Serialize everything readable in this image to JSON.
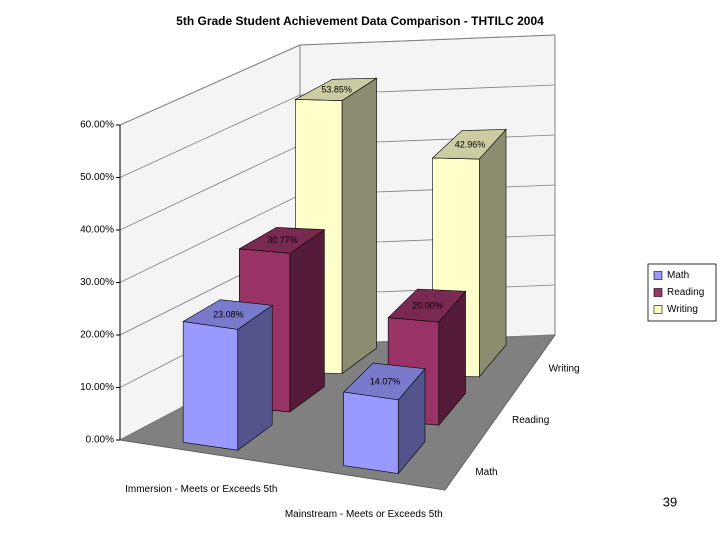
{
  "chart_data": {
    "type": "bar3d",
    "title": "5th Grade Student Achievement Data Comparison - THTILC 2004",
    "categories": [
      "Immersion - Meets or Exceeds 5th",
      "Mainstream - Meets or Exceeds 5th"
    ],
    "series": [
      {
        "name": "Math",
        "color": "#9999ff",
        "values": [
          23.08,
          14.07
        ],
        "value_labels": [
          "23.08%",
          "14.07%"
        ]
      },
      {
        "name": "Reading",
        "color": "#993366",
        "values": [
          30.77,
          20.0
        ],
        "value_labels": [
          "30.77%",
          "20.00%"
        ]
      },
      {
        "name": "Writing",
        "color": "#ffffcc",
        "values": [
          53.85,
          42.96
        ],
        "value_labels": [
          "53.85%",
          "42.96%"
        ]
      }
    ],
    "ylim": [
      0,
      60
    ],
    "yticks": [
      {
        "value": 0,
        "label": "0.00%"
      },
      {
        "value": 10,
        "label": "10.00%"
      },
      {
        "value": 20,
        "label": "20.00%"
      },
      {
        "value": 30,
        "label": "30.00%"
      },
      {
        "value": 40,
        "label": "40.00%"
      },
      {
        "value": 50,
        "label": "50.00%"
      },
      {
        "value": 60,
        "label": "60.00%"
      }
    ],
    "grid": true,
    "legend": "right"
  },
  "page_number": "39"
}
